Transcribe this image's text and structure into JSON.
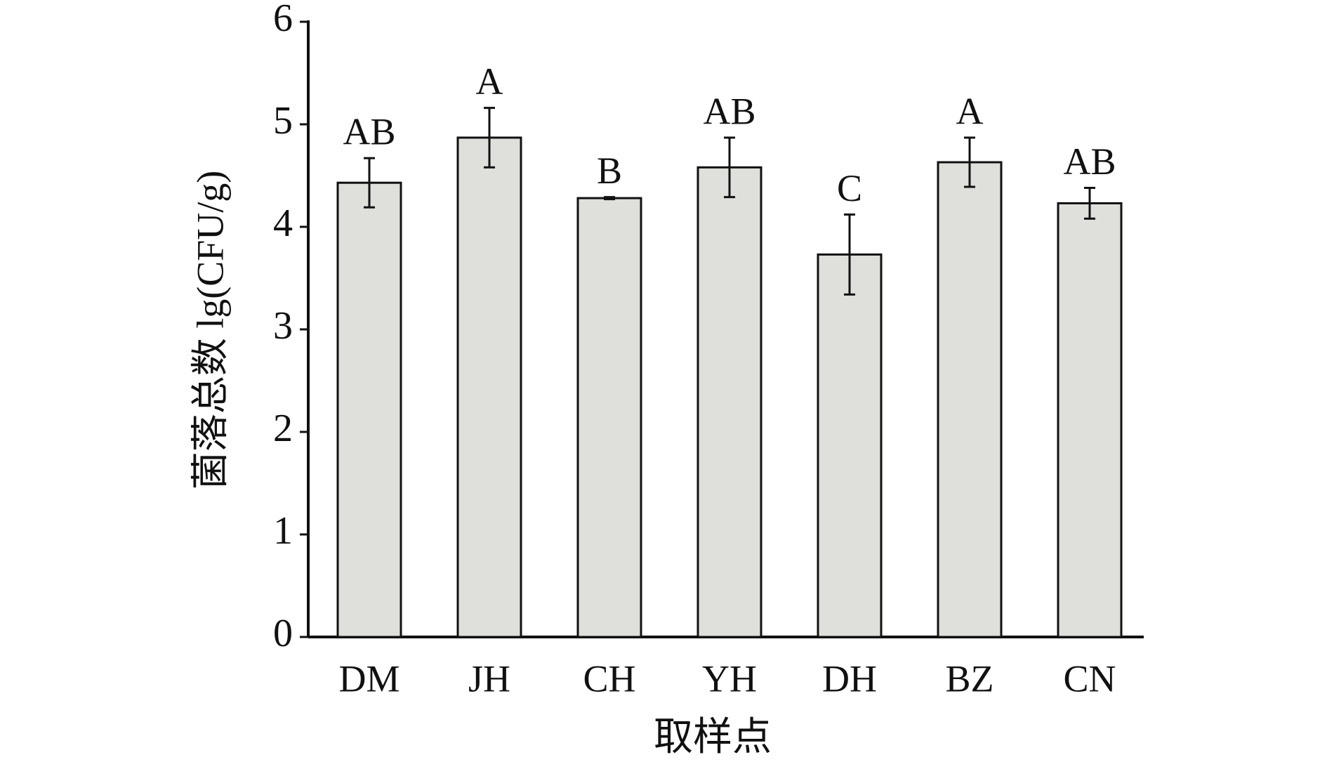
{
  "chart_data": {
    "type": "bar",
    "x_label": "取样点",
    "y_label": "菌落总数 lg(CFU/g)",
    "categories": [
      "DM",
      "JH",
      "CH",
      "YH",
      "DH",
      "BZ",
      "CN"
    ],
    "values": [
      4.43,
      4.87,
      4.28,
      4.58,
      3.73,
      4.63,
      4.23
    ],
    "errors": [
      0.24,
      0.29,
      0.01,
      0.29,
      0.39,
      0.24,
      0.15
    ],
    "annotations": [
      "AB",
      "A",
      "B",
      "AB",
      "C",
      "A",
      "AB"
    ],
    "color": "#dfe0dc",
    "ylim": [
      0,
      6
    ],
    "yticks": [
      0,
      1,
      2,
      3,
      4,
      5,
      6
    ],
    "grid": false
  }
}
